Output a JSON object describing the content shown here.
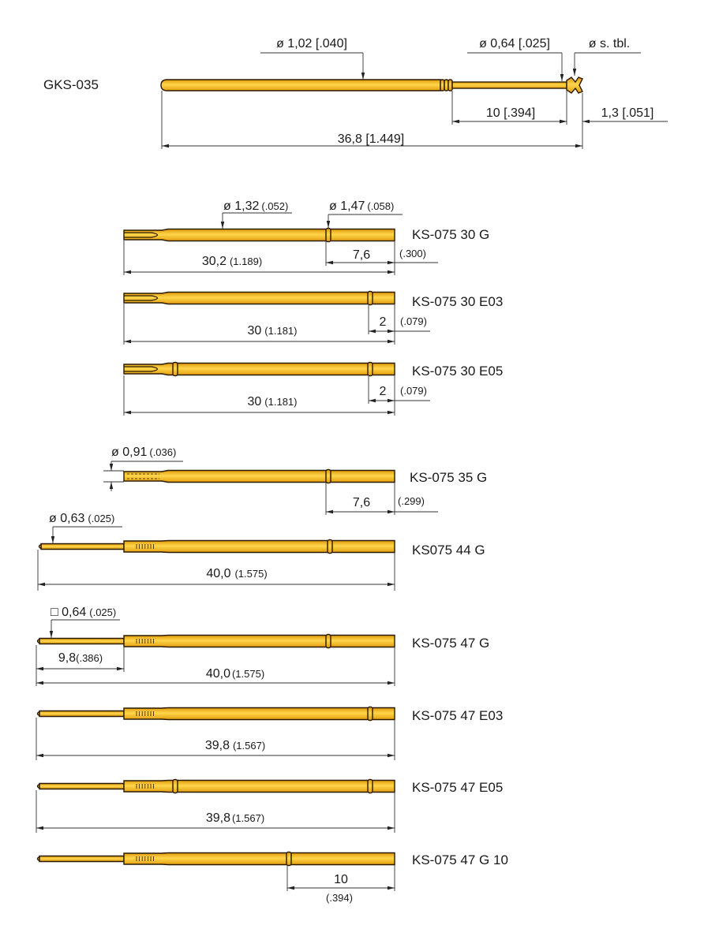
{
  "pin_color": "#F2B51A",
  "gks": {
    "label": "GKS-035",
    "dia_body": "ø 1,02 [.040]",
    "dia_thin": "ø 0,64 [.025]",
    "dia_tip": "ø s. tbl.",
    "dim_thin": "10 [.394]",
    "dim_tip": "1,3 [.051]",
    "dim_total": "36,8 [1.449]"
  },
  "pins": [
    {
      "label": "KS-075 30 G",
      "dia1": "ø 1,32",
      "dia1_in": "(.052)",
      "dia2": "ø 1,47",
      "dia2_in": "(.058)",
      "dim_ring": "7,6",
      "dim_ring_in": "(.300)",
      "total": "30,2",
      "total_in": "(1.189)"
    },
    {
      "label": "KS-075 30 E03",
      "dim_ring": "2",
      "dim_ring_in": "(.079)",
      "total": "30",
      "total_in": "(1.181)"
    },
    {
      "label": "KS-075 30 E05",
      "dim_ring": "2",
      "dim_ring_in": "(.079)",
      "total": "30",
      "total_in": "(1.181)"
    },
    {
      "label": "KS-075 35 G",
      "dia1": "ø 0,91",
      "dia1_in": "(.036)",
      "dim_ring": "7,6",
      "dim_ring_in": "(.299)"
    },
    {
      "label": "KS075 44 G",
      "dia1": "ø 0,63",
      "dia1_in": "(.025)",
      "total": "40,0",
      "total_in": "(1.575)"
    },
    {
      "label": "KS-075 47 G",
      "dia1": "□ 0,64",
      "dia1_in": "(.025)",
      "dim_tip": "9,8",
      "dim_tip_in": "(.386)",
      "total": "40,0",
      "total_in": "(1.575)"
    },
    {
      "label": "KS-075 47 E03",
      "total": "39,8",
      "total_in": "(1.567)"
    },
    {
      "label": "KS-075 47 E05",
      "total": "39,8",
      "total_in": "(1.567)"
    },
    {
      "label": "KS-075 47 G 10",
      "dim_ring": "10",
      "dim_ring_in": "(.394)"
    }
  ]
}
